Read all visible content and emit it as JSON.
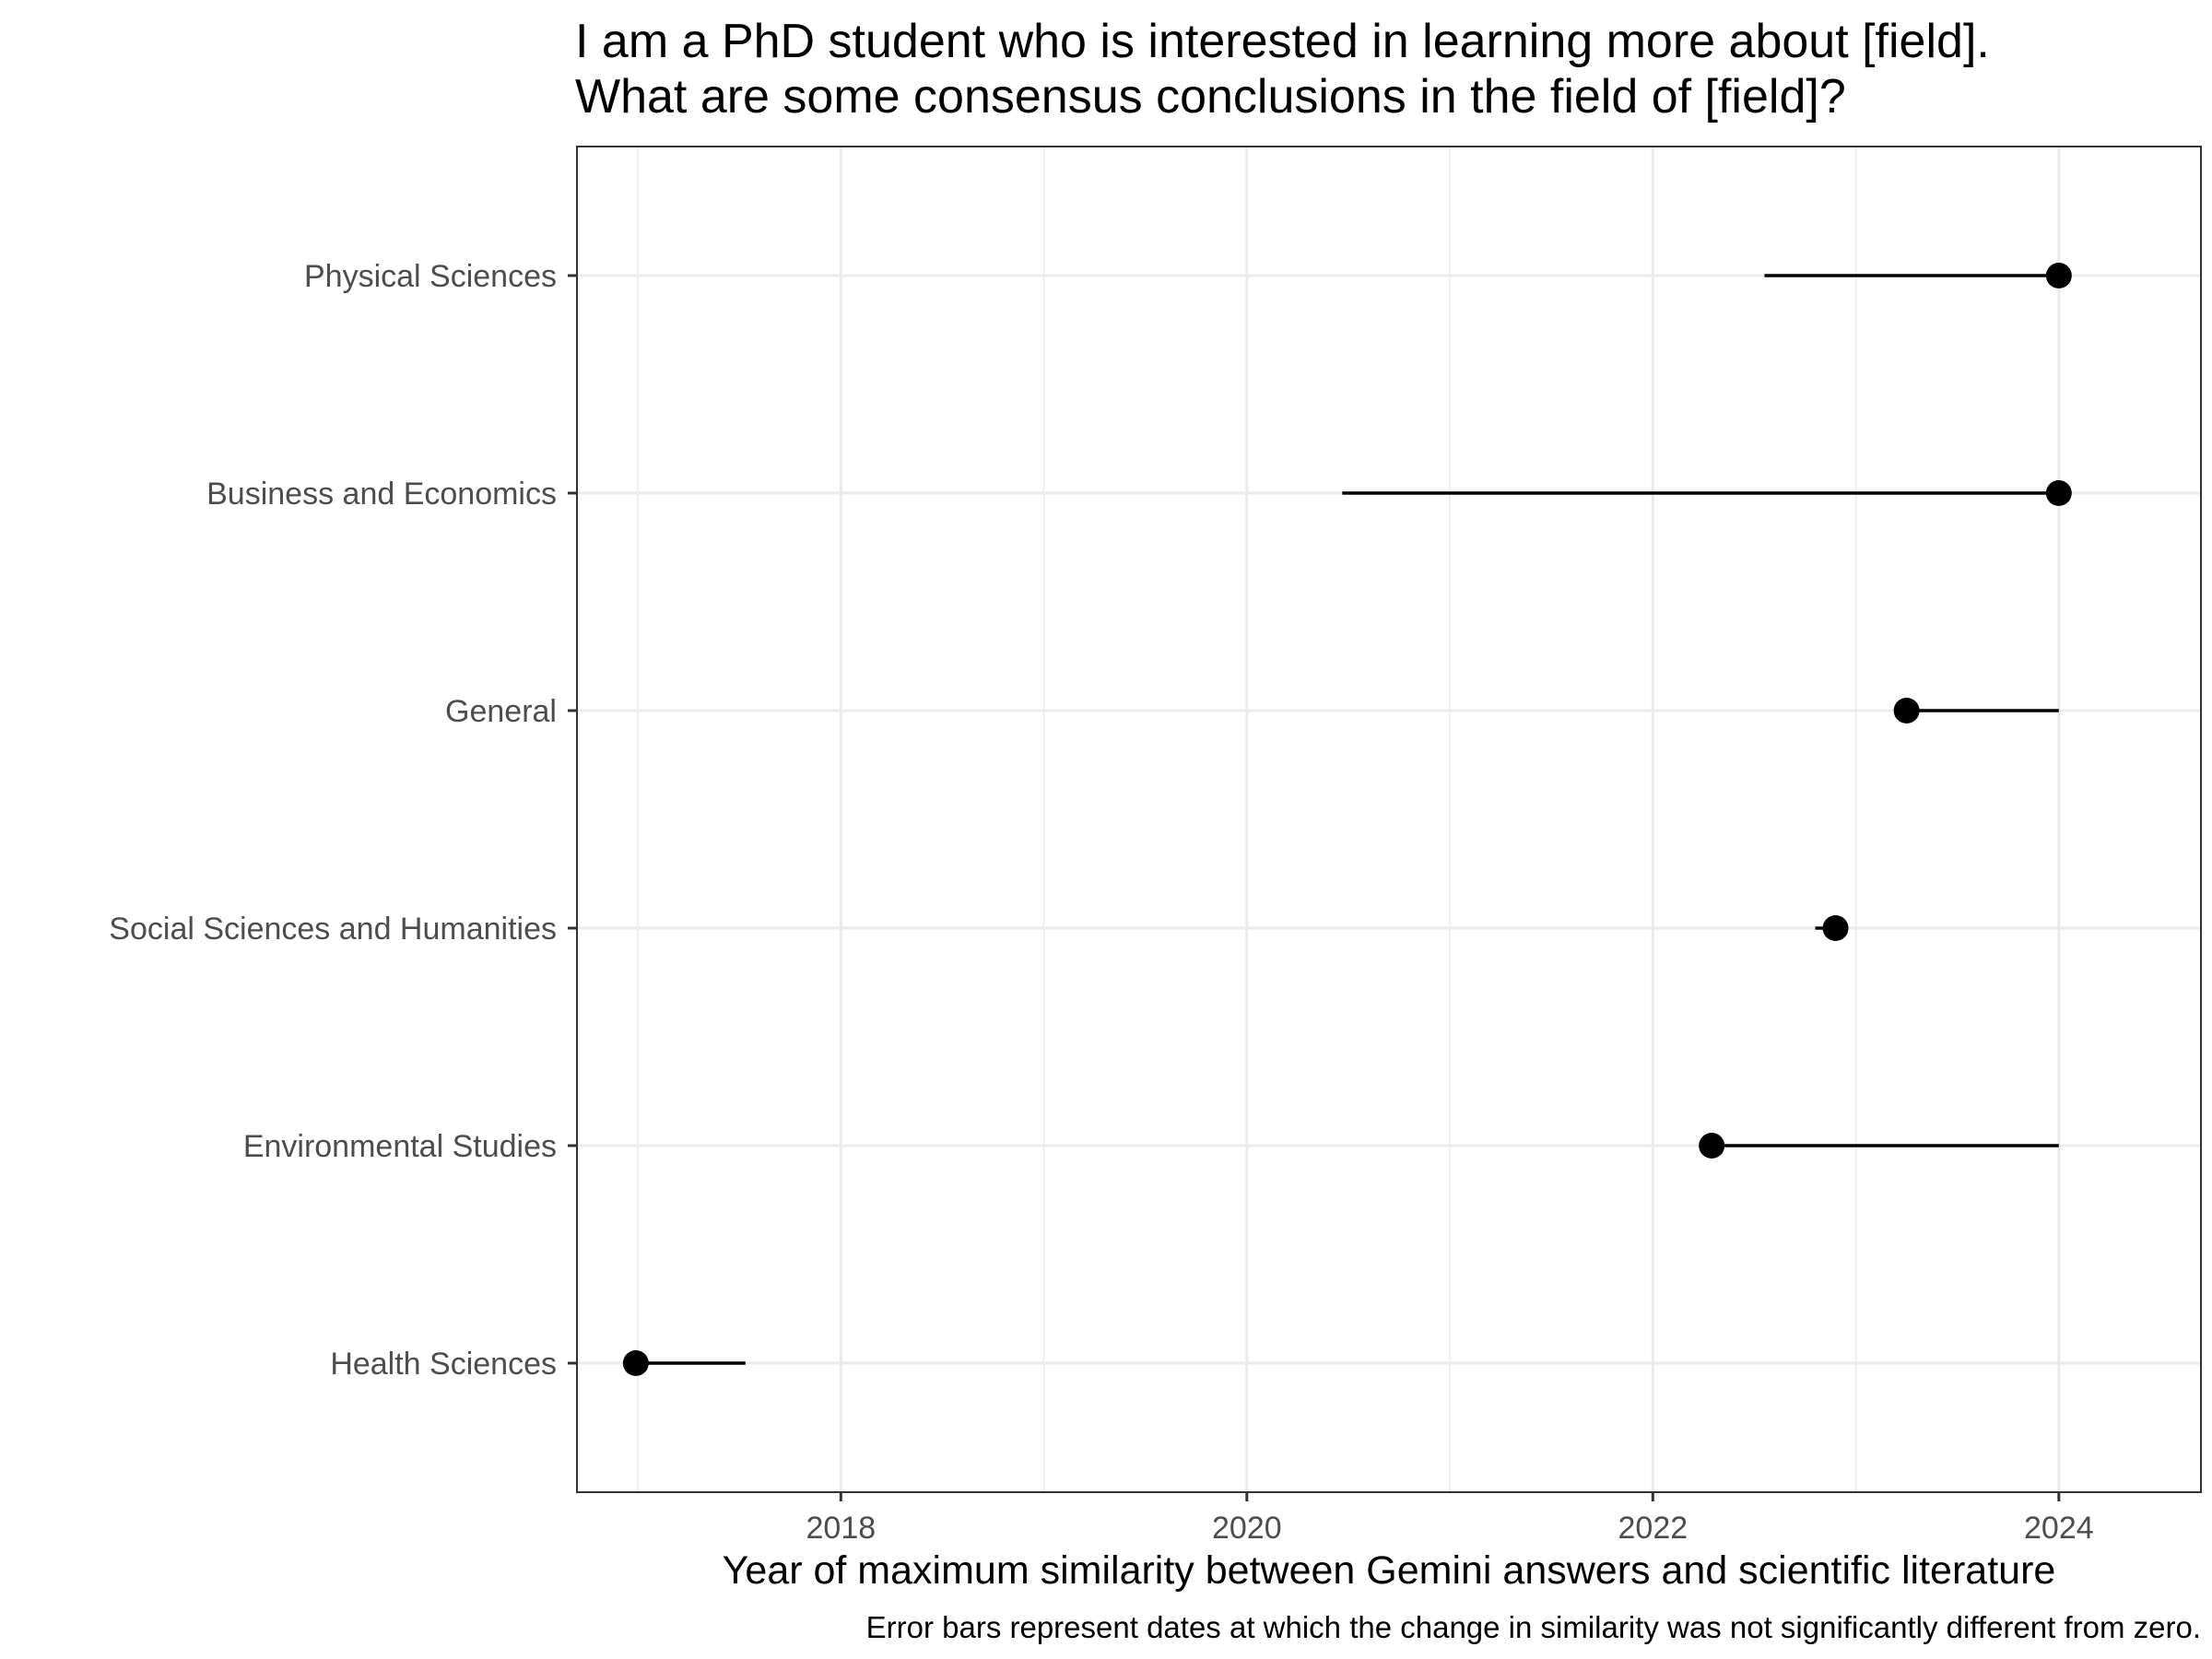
{
  "chart_data": {
    "type": "scatter",
    "title_lines": [
      "I am a PhD student who is interested in learning more about [field].",
      "What are some consensus conclusions in the field of [field]?"
    ],
    "xlabel": "Year of maximum similarity between Gemini answers and scientific literature",
    "ylabel": "",
    "caption": "Error bars represent dates at which the change in similarity was not significantly different from zero.",
    "xlim": [
      2016.7,
      2024.7
    ],
    "xticks": [
      2018,
      2020,
      2022,
      2024
    ],
    "xtick_labels": [
      "2018",
      "2020",
      "2022",
      "2024"
    ],
    "minor_xticks": [
      2017,
      2019,
      2021,
      2023
    ],
    "grid": true,
    "categories": [
      "Physical Sciences",
      "Business and Economics",
      "General",
      "Social Sciences and Humanities",
      "Environmental Studies",
      "Health Sciences"
    ],
    "points": [
      {
        "category": "Physical Sciences",
        "x": 2024.0,
        "lo": 2022.55,
        "hi": 2024.0
      },
      {
        "category": "Business and Economics",
        "x": 2024.0,
        "lo": 2020.47,
        "hi": 2024.0
      },
      {
        "category": "General",
        "x": 2023.25,
        "lo": 2023.25,
        "hi": 2024.0
      },
      {
        "category": "Social Sciences and Humanities",
        "x": 2022.9,
        "lo": 2022.8,
        "hi": 2022.9
      },
      {
        "category": "Environmental Studies",
        "x": 2022.29,
        "lo": 2022.29,
        "hi": 2024.0
      },
      {
        "category": "Health Sciences",
        "x": 2016.99,
        "lo": 2016.99,
        "hi": 2017.53
      }
    ],
    "colors": {
      "points": "#000000",
      "error_bars": "#000000",
      "grid": "#ebebeb",
      "panel_border": "#333333",
      "tick_labels": "#4d4d4d"
    }
  }
}
